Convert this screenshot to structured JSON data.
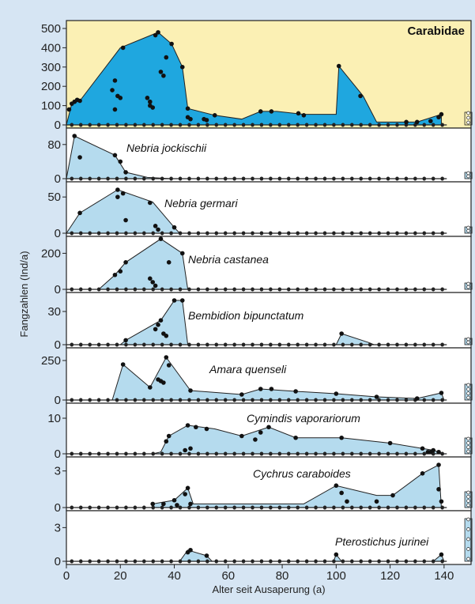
{
  "chart_data": {
    "type": "area",
    "xlabel": "Alter seit Ausaperung (a)",
    "ylabel": "Fangzahlen (Ind/a)",
    "xlim": [
      0,
      150
    ],
    "x_ticks": [
      0,
      20,
      40,
      60,
      80,
      100,
      120,
      140
    ],
    "grid": false,
    "panels": [
      {
        "name": "Carabidae",
        "label_style": "bold",
        "fill": "#1fa7df",
        "bg": "#fbf0b4",
        "ylim": [
          0,
          500
        ],
        "yticks": [
          0,
          100,
          200,
          300,
          400,
          500
        ],
        "curve": [
          [
            0,
            0
          ],
          [
            2,
            110
          ],
          [
            5,
            125
          ],
          [
            20,
            400
          ],
          [
            34,
            480
          ],
          [
            39,
            420
          ],
          [
            43,
            300
          ],
          [
            45,
            85
          ],
          [
            55,
            50
          ],
          [
            65,
            30
          ],
          [
            72,
            70
          ],
          [
            78,
            70
          ],
          [
            88,
            55
          ],
          [
            100,
            55
          ],
          [
            101,
            305
          ],
          [
            110,
            150
          ],
          [
            115,
            15
          ],
          [
            130,
            15
          ],
          [
            139,
            55
          ],
          [
            139,
            0
          ]
        ],
        "points": [
          [
            1,
            80
          ],
          [
            2,
            110
          ],
          [
            3,
            120
          ],
          [
            4,
            130
          ],
          [
            5,
            125
          ],
          [
            17,
            180
          ],
          [
            18,
            80
          ],
          [
            18,
            230
          ],
          [
            19,
            150
          ],
          [
            20,
            140
          ],
          [
            21,
            400
          ],
          [
            30,
            140
          ],
          [
            31,
            120
          ],
          [
            31,
            100
          ],
          [
            32,
            90
          ],
          [
            33,
            465
          ],
          [
            34,
            480
          ],
          [
            35,
            275
          ],
          [
            36,
            255
          ],
          [
            37,
            350
          ],
          [
            39,
            420
          ],
          [
            43,
            300
          ],
          [
            45,
            85
          ],
          [
            45,
            40
          ],
          [
            46,
            30
          ],
          [
            51,
            30
          ],
          [
            52,
            25
          ],
          [
            55,
            50
          ],
          [
            72,
            70
          ],
          [
            76,
            70
          ],
          [
            86,
            60
          ],
          [
            88,
            50
          ],
          [
            101,
            305
          ],
          [
            109,
            150
          ],
          [
            126,
            15
          ],
          [
            130,
            15
          ],
          [
            135,
            20
          ],
          [
            138,
            40
          ],
          [
            139,
            55
          ]
        ]
      },
      {
        "name": "Nebria jockischii",
        "fill": "#b5dbee",
        "bg": "#ffffff",
        "ylim": [
          0,
          100
        ],
        "yticks": [
          0,
          80
        ],
        "curve": [
          [
            0,
            0
          ],
          [
            3,
            100
          ],
          [
            18,
            55
          ],
          [
            22,
            15
          ],
          [
            30,
            3
          ],
          [
            39,
            0
          ]
        ],
        "points": [
          [
            3,
            100
          ],
          [
            5,
            50
          ],
          [
            18,
            55
          ],
          [
            20,
            40
          ],
          [
            22,
            15
          ]
        ]
      },
      {
        "name": "Nebria germari",
        "fill": "#b5dbee",
        "bg": "#ffffff",
        "ylim": [
          0,
          60
        ],
        "yticks": [
          0,
          50
        ],
        "curve": [
          [
            0,
            0
          ],
          [
            5,
            28
          ],
          [
            19,
            60
          ],
          [
            32,
            43
          ],
          [
            40,
            8
          ],
          [
            42,
            0
          ]
        ],
        "points": [
          [
            5,
            28
          ],
          [
            19,
            60
          ],
          [
            19,
            50
          ],
          [
            21,
            55
          ],
          [
            22,
            18
          ],
          [
            31,
            42
          ],
          [
            33,
            10
          ],
          [
            34,
            5
          ],
          [
            40,
            8
          ]
        ]
      },
      {
        "name": "Nebria castanea",
        "fill": "#b5dbee",
        "bg": "#ffffff",
        "ylim": [
          0,
          250
        ],
        "yticks": [
          0,
          200
        ],
        "curve": [
          [
            0,
            0
          ],
          [
            12,
            0
          ],
          [
            18,
            80
          ],
          [
            22,
            150
          ],
          [
            35,
            280
          ],
          [
            43,
            200
          ],
          [
            45,
            0
          ]
        ],
        "points": [
          [
            18,
            80
          ],
          [
            20,
            100
          ],
          [
            22,
            150
          ],
          [
            31,
            60
          ],
          [
            32,
            40
          ],
          [
            33,
            20
          ],
          [
            35,
            280
          ],
          [
            38,
            150
          ],
          [
            43,
            200
          ]
        ]
      },
      {
        "name": "Bembidion bipunctatum",
        "fill": "#b5dbee",
        "bg": "#ffffff",
        "ylim": [
          0,
          40
        ],
        "yticks": [
          0,
          30
        ],
        "curve": [
          [
            20,
            0
          ],
          [
            22,
            4
          ],
          [
            35,
            22
          ],
          [
            40,
            40
          ],
          [
            43,
            40
          ],
          [
            45,
            0
          ],
          [
            100,
            0
          ],
          [
            102,
            10
          ],
          [
            112,
            2
          ],
          [
            114,
            0
          ]
        ],
        "points": [
          [
            22,
            4
          ],
          [
            33,
            14
          ],
          [
            34,
            18
          ],
          [
            35,
            22
          ],
          [
            36,
            10
          ],
          [
            37,
            8
          ],
          [
            40,
            40
          ],
          [
            43,
            40
          ],
          [
            102,
            10
          ]
        ]
      },
      {
        "name": "Amara quenseli",
        "fill": "#b5dbee",
        "bg": "#ffffff",
        "ylim": [
          0,
          280
        ],
        "yticks": [
          0,
          250
        ],
        "curve": [
          [
            17,
            0
          ],
          [
            21,
            225
          ],
          [
            31,
            80
          ],
          [
            37,
            270
          ],
          [
            46,
            60
          ],
          [
            65,
            35
          ],
          [
            72,
            70
          ],
          [
            85,
            55
          ],
          [
            100,
            40
          ],
          [
            115,
            20
          ],
          [
            130,
            10
          ],
          [
            139,
            45
          ],
          [
            140,
            0
          ]
        ],
        "points": [
          [
            21,
            225
          ],
          [
            31,
            80
          ],
          [
            34,
            130
          ],
          [
            35,
            120
          ],
          [
            36,
            110
          ],
          [
            37,
            270
          ],
          [
            38,
            220
          ],
          [
            46,
            60
          ],
          [
            65,
            35
          ],
          [
            72,
            70
          ],
          [
            76,
            70
          ],
          [
            85,
            55
          ],
          [
            100,
            40
          ],
          [
            115,
            20
          ],
          [
            130,
            10
          ],
          [
            139,
            45
          ]
        ]
      },
      {
        "name": "Cymindis vaporariorum",
        "fill": "#b5dbee",
        "bg": "#ffffff",
        "ylim": [
          0,
          12
        ],
        "yticks": [
          0,
          10
        ],
        "curve": [
          [
            32,
            0
          ],
          [
            35,
            0.5
          ],
          [
            38,
            5
          ],
          [
            45,
            8
          ],
          [
            55,
            7
          ],
          [
            65,
            5
          ],
          [
            75,
            7.5
          ],
          [
            85,
            4.5
          ],
          [
            102,
            4.5
          ],
          [
            120,
            3
          ],
          [
            132,
            1.5
          ],
          [
            136,
            1
          ],
          [
            140,
            0
          ]
        ],
        "points": [
          [
            37,
            3.5
          ],
          [
            38,
            5
          ],
          [
            44,
            1
          ],
          [
            45,
            8
          ],
          [
            46,
            1.5
          ],
          [
            48,
            7.5
          ],
          [
            52,
            7
          ],
          [
            65,
            5
          ],
          [
            70,
            4
          ],
          [
            72,
            6
          ],
          [
            75,
            7.5
          ],
          [
            85,
            4.5
          ],
          [
            102,
            4.5
          ],
          [
            120,
            3
          ],
          [
            132,
            1.5
          ],
          [
            134,
            0.5
          ],
          [
            135,
            0.5
          ],
          [
            136,
            1
          ],
          [
            138,
            0.5
          ]
        ]
      },
      {
        "name": "Cychrus caraboides",
        "fill": "#b5dbee",
        "bg": "#ffffff",
        "ylim": [
          0,
          3.5
        ],
        "yticks": [
          0,
          3
        ],
        "curve": [
          [
            32,
            0
          ],
          [
            32,
            0.3
          ],
          [
            40,
            0.6
          ],
          [
            45,
            1.6
          ],
          [
            47,
            0.3
          ],
          [
            80,
            0.3
          ],
          [
            88,
            0.3
          ],
          [
            100,
            1.8
          ],
          [
            115,
            1.0
          ],
          [
            121,
            1.0
          ],
          [
            132,
            2.8
          ],
          [
            138,
            3.5
          ],
          [
            139,
            0
          ]
        ],
        "points": [
          [
            32,
            0.3
          ],
          [
            36,
            0.3
          ],
          [
            40,
            0.6
          ],
          [
            41,
            0.2
          ],
          [
            44,
            1.1
          ],
          [
            45,
            1.6
          ],
          [
            46,
            0.3
          ],
          [
            100,
            1.8
          ],
          [
            102,
            1.2
          ],
          [
            104,
            0.5
          ],
          [
            115,
            0.5
          ],
          [
            121,
            1.0
          ],
          [
            132,
            2.8
          ],
          [
            138,
            3.5
          ],
          [
            138,
            1.5
          ],
          [
            139,
            0.5
          ]
        ]
      },
      {
        "name": "Pterostichus jurinei",
        "fill": "#b5dbee",
        "bg": "#ffffff",
        "ylim": [
          0,
          3.8
        ],
        "yticks": [
          0,
          3
        ],
        "curve": [
          [
            42,
            0
          ],
          [
            45,
            1.0
          ],
          [
            52,
            0.5
          ],
          [
            54,
            0
          ],
          [
            99,
            0
          ],
          [
            100,
            0.6
          ],
          [
            102,
            0
          ],
          [
            136,
            0
          ],
          [
            139,
            0.6
          ],
          [
            140,
            0
          ]
        ],
        "points": [
          [
            45,
            0.8
          ],
          [
            46,
            1.0
          ],
          [
            52,
            0.5
          ],
          [
            100,
            0.6
          ],
          [
            139,
            0.6
          ]
        ]
      }
    ]
  }
}
